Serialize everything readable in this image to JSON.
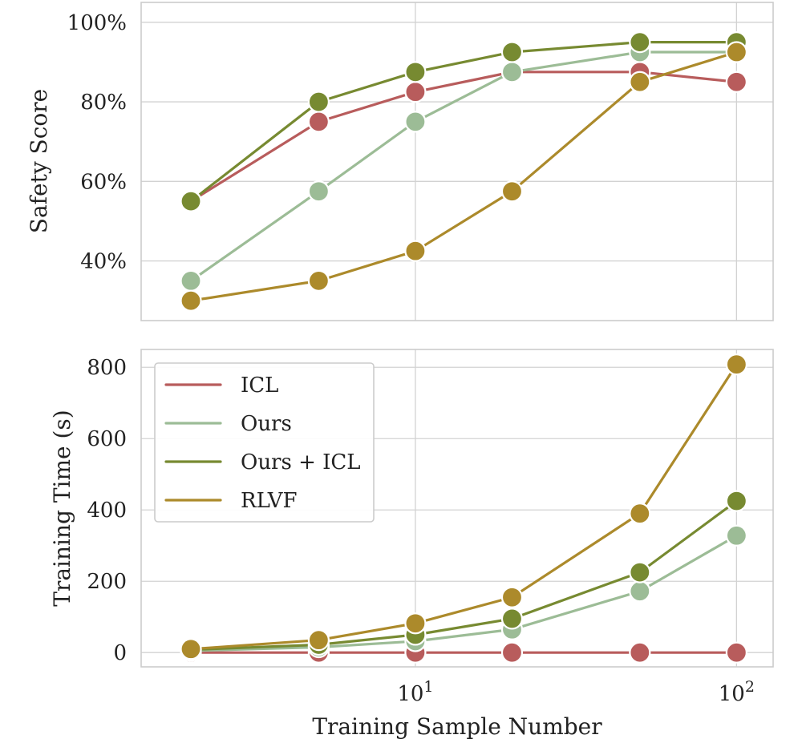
{
  "chart_data": [
    {
      "type": "line",
      "xscale": "log",
      "x": [
        2,
        5,
        10,
        20,
        50,
        100
      ],
      "xlim": [
        1.4,
        130
      ],
      "ylim": [
        25,
        105
      ],
      "ylabel": "Safety Score",
      "yticks": [
        40,
        60,
        80,
        100
      ],
      "ytick_labels": [
        "40%",
        "60%",
        "80%",
        "100%"
      ],
      "grid": true,
      "series": [
        {
          "name": "ICL",
          "color": "#b85c5c",
          "values": [
            55,
            75,
            82.5,
            87.5,
            87.5,
            85
          ]
        },
        {
          "name": "Ours",
          "color": "#9cbc96",
          "values": [
            35,
            57.5,
            75,
            87.5,
            92.5,
            92.5
          ]
        },
        {
          "name": "Ours + ICL",
          "color": "#778a31",
          "values": [
            55,
            80,
            87.5,
            92.5,
            95,
            95
          ]
        },
        {
          "name": "RLVF",
          "color": "#ac8a2b",
          "values": [
            30,
            35,
            42.5,
            57.5,
            85,
            92.5
          ]
        }
      ]
    },
    {
      "type": "line",
      "xscale": "log",
      "x": [
        2,
        5,
        10,
        20,
        50,
        100
      ],
      "xlim": [
        1.4,
        130
      ],
      "ylim": [
        -40,
        850
      ],
      "xlabel": "Training Sample Number",
      "ylabel": "Training Time (s)",
      "xticks": [
        10,
        100
      ],
      "xtick_labels": [
        {
          "base": "10",
          "exp": "1"
        },
        {
          "base": "10",
          "exp": "2"
        }
      ],
      "yticks": [
        0,
        200,
        400,
        600,
        800
      ],
      "ytick_labels": [
        "0",
        "200",
        "400",
        "600",
        "800"
      ],
      "grid": true,
      "legend": {
        "position": "top-left",
        "entries": [
          "ICL",
          "Ours",
          "Ours + ICL",
          "RLVF"
        ]
      },
      "series": [
        {
          "name": "ICL",
          "color": "#b85c5c",
          "values": [
            0,
            0,
            0,
            0,
            0,
            0
          ]
        },
        {
          "name": "Ours",
          "color": "#9cbc96",
          "values": [
            5,
            15,
            32,
            65,
            172,
            328
          ]
        },
        {
          "name": "Ours + ICL",
          "color": "#778a31",
          "values": [
            8,
            22,
            50,
            95,
            225,
            425
          ]
        },
        {
          "name": "RLVF",
          "color": "#ac8a2b",
          "values": [
            10,
            35,
            82,
            155,
            390,
            808
          ]
        }
      ]
    }
  ]
}
